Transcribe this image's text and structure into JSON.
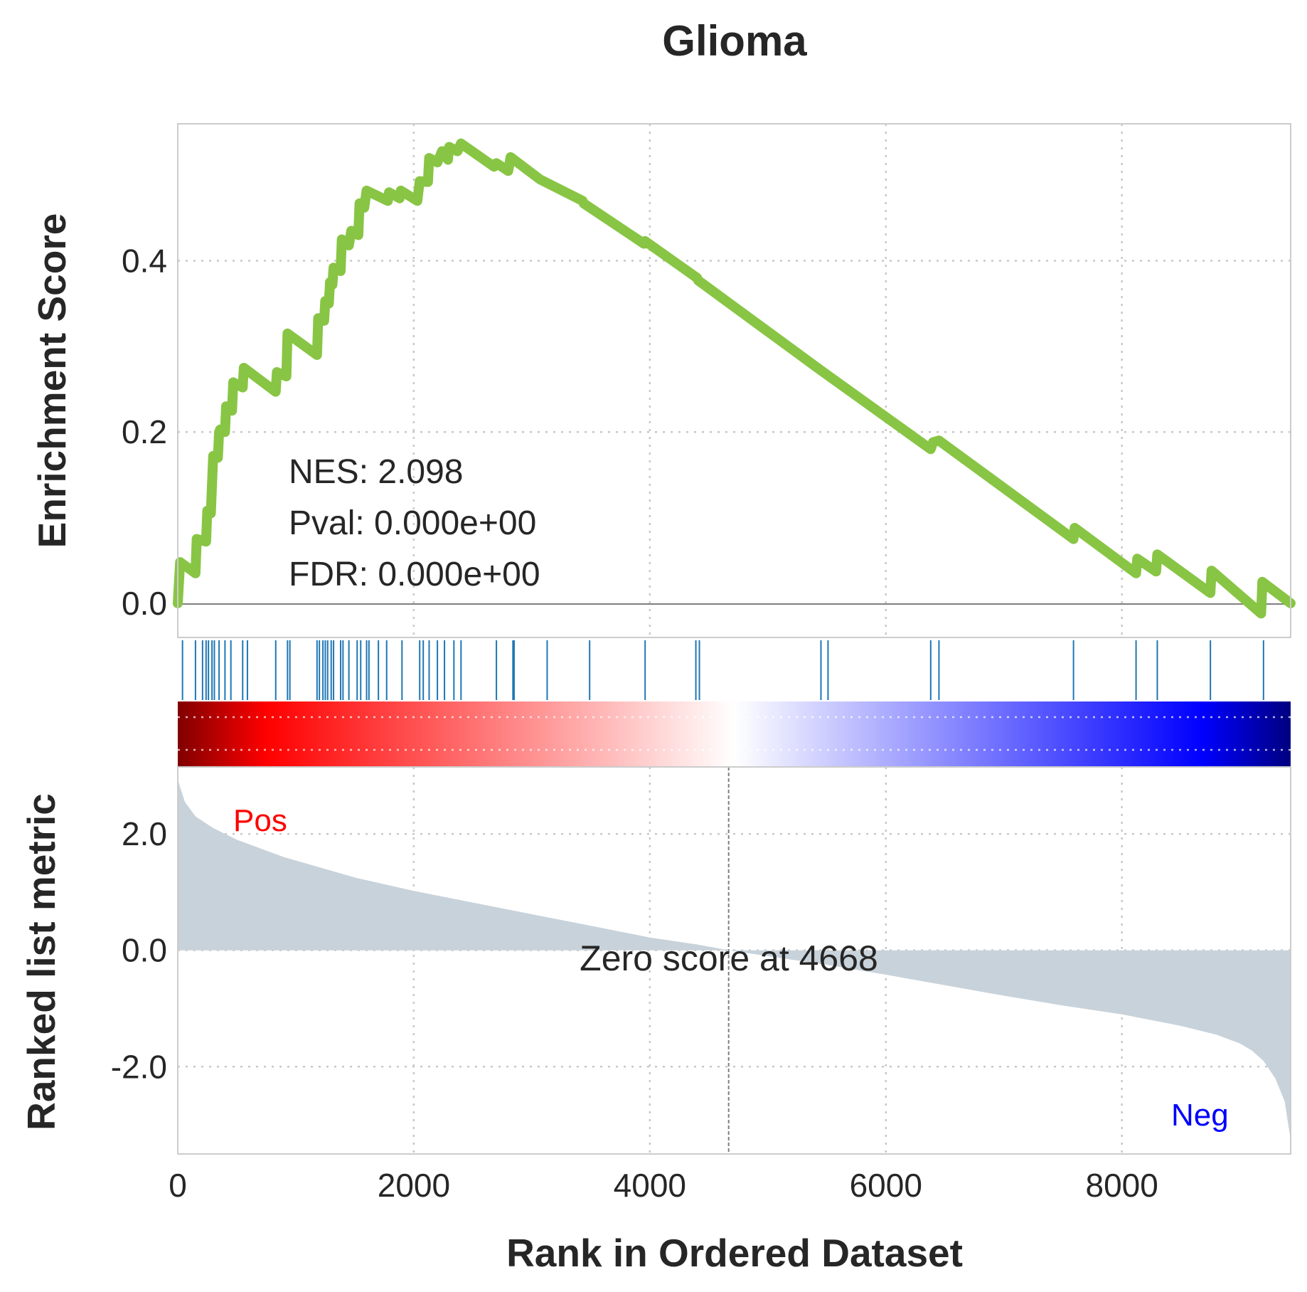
{
  "chart_data": {
    "type": "line",
    "title": "Glioma",
    "xlabel": "Rank in Ordered Dataset",
    "xlim": [
      0,
      9430
    ],
    "xticks": [
      {
        "value": 0,
        "label": "0"
      },
      {
        "value": 2000,
        "label": "2000"
      },
      {
        "value": 4000,
        "label": "4000"
      },
      {
        "value": 6000,
        "label": "6000"
      },
      {
        "value": 8000,
        "label": "8000"
      }
    ],
    "grid": true,
    "enrichment": {
      "ylabel": "Enrichment Score",
      "ylim": [
        -0.04,
        0.56
      ],
      "yticks": [
        {
          "value": 0.0,
          "label": "0.0"
        },
        {
          "value": 0.2,
          "label": "0.2"
        },
        {
          "value": 0.4,
          "label": "0.4"
        }
      ],
      "line_color": "#88c544",
      "stats": {
        "nes": "NES: 2.098",
        "pval": "Pval: 0.000e+00",
        "fdr": "FDR: 0.000e+00"
      },
      "points": [
        [
          0,
          0.0
        ],
        [
          20,
          0.048
        ],
        [
          150,
          0.035
        ],
        [
          160,
          0.075
        ],
        [
          240,
          0.072
        ],
        [
          250,
          0.108
        ],
        [
          280,
          0.105
        ],
        [
          290,
          0.138
        ],
        [
          300,
          0.172
        ],
        [
          340,
          0.17
        ],
        [
          350,
          0.2
        ],
        [
          360,
          0.203
        ],
        [
          400,
          0.2
        ],
        [
          410,
          0.23
        ],
        [
          460,
          0.225
        ],
        [
          470,
          0.258
        ],
        [
          550,
          0.252
        ],
        [
          560,
          0.275
        ],
        [
          830,
          0.247
        ],
        [
          840,
          0.27
        ],
        [
          920,
          0.265
        ],
        [
          930,
          0.315
        ],
        [
          1180,
          0.29
        ],
        [
          1190,
          0.333
        ],
        [
          1240,
          0.33
        ],
        [
          1250,
          0.353
        ],
        [
          1280,
          0.35
        ],
        [
          1290,
          0.375
        ],
        [
          1310,
          0.372
        ],
        [
          1320,
          0.392
        ],
        [
          1380,
          0.388
        ],
        [
          1390,
          0.425
        ],
        [
          1450,
          0.418
        ],
        [
          1470,
          0.435
        ],
        [
          1530,
          0.43
        ],
        [
          1540,
          0.467
        ],
        [
          1580,
          0.462
        ],
        [
          1600,
          0.482
        ],
        [
          1780,
          0.47
        ],
        [
          1790,
          0.48
        ],
        [
          1880,
          0.473
        ],
        [
          1890,
          0.482
        ],
        [
          2030,
          0.47
        ],
        [
          2050,
          0.493
        ],
        [
          2120,
          0.492
        ],
        [
          2130,
          0.52
        ],
        [
          2200,
          0.515
        ],
        [
          2240,
          0.528
        ],
        [
          2290,
          0.518
        ],
        [
          2300,
          0.533
        ],
        [
          2370,
          0.528
        ],
        [
          2400,
          0.537
        ],
        [
          2680,
          0.51
        ],
        [
          2700,
          0.514
        ],
        [
          2800,
          0.505
        ],
        [
          2820,
          0.521
        ],
        [
          3070,
          0.495
        ],
        [
          3430,
          0.47
        ],
        [
          3440,
          0.467
        ],
        [
          3950,
          0.42
        ],
        [
          3960,
          0.423
        ],
        [
          4400,
          0.38
        ],
        [
          4410,
          0.377
        ],
        [
          5440,
          0.273
        ],
        [
          5450,
          0.272
        ],
        [
          5470,
          0.27
        ],
        [
          6380,
          0.18
        ],
        [
          6400,
          0.188
        ],
        [
          6450,
          0.19
        ],
        [
          7590,
          0.075
        ],
        [
          7600,
          0.088
        ],
        [
          8120,
          0.035
        ],
        [
          8130,
          0.052
        ],
        [
          8290,
          0.037
        ],
        [
          8300,
          0.057
        ],
        [
          8750,
          0.012
        ],
        [
          8760,
          0.038
        ],
        [
          9180,
          -0.012
        ],
        [
          9190,
          0.025
        ],
        [
          9430,
          0.0
        ]
      ]
    },
    "hits": [
      40,
      150,
      210,
      240,
      260,
      290,
      310,
      350,
      400,
      450,
      550,
      590,
      830,
      930,
      950,
      1180,
      1200,
      1230,
      1250,
      1270,
      1300,
      1320,
      1380,
      1400,
      1450,
      1520,
      1550,
      1600,
      1620,
      1700,
      1770,
      1900,
      2050,
      2080,
      2130,
      2200,
      2260,
      2340,
      2400,
      2700,
      2840,
      2850,
      3130,
      3490,
      3960,
      4390,
      4420,
      5450,
      5510,
      6380,
      6450,
      7590,
      8120,
      8300,
      8750,
      9200
    ],
    "ranked_metric": {
      "ylabel": "Ranked list metric",
      "ylim": [
        -3.5,
        3.15
      ],
      "yticks": [
        {
          "value": 2.0,
          "label": "2.0"
        },
        {
          "value": 0.0,
          "label": "0.0"
        },
        {
          "value": -2.0,
          "label": "-2.0"
        }
      ],
      "fill_color": "#c8d2da",
      "zero_cross_label": "Zero score at 4668",
      "zero_cross": 4668,
      "pos_label": "Pos",
      "neg_label": "Neg",
      "points": [
        [
          0,
          2.95
        ],
        [
          20,
          2.8
        ],
        [
          60,
          2.55
        ],
        [
          150,
          2.3
        ],
        [
          300,
          2.1
        ],
        [
          500,
          1.9
        ],
        [
          900,
          1.6
        ],
        [
          1500,
          1.25
        ],
        [
          2000,
          1.02
        ],
        [
          3000,
          0.62
        ],
        [
          3500,
          0.42
        ],
        [
          4000,
          0.22
        ],
        [
          4400,
          0.1
        ],
        [
          4668,
          0.0
        ],
        [
          5000,
          -0.1
        ],
        [
          5500,
          -0.25
        ],
        [
          6000,
          -0.42
        ],
        [
          6500,
          -0.6
        ],
        [
          7000,
          -0.78
        ],
        [
          7500,
          -0.95
        ],
        [
          8000,
          -1.1
        ],
        [
          8500,
          -1.3
        ],
        [
          8800,
          -1.45
        ],
        [
          9000,
          -1.6
        ],
        [
          9100,
          -1.72
        ],
        [
          9200,
          -1.9
        ],
        [
          9300,
          -2.2
        ],
        [
          9380,
          -2.6
        ],
        [
          9410,
          -3.0
        ],
        [
          9430,
          -3.25
        ]
      ]
    }
  }
}
